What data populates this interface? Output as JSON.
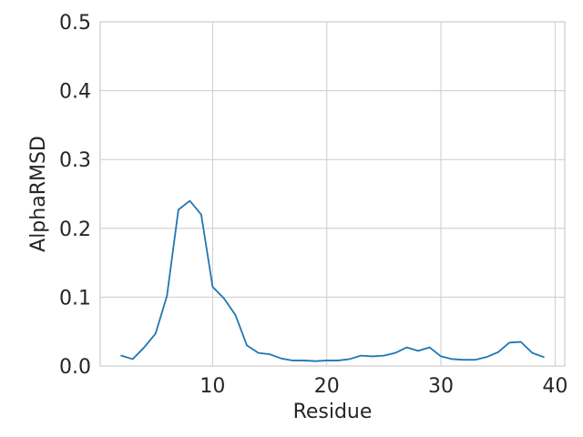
{
  "chart_data": {
    "type": "line",
    "title": "",
    "xlabel": "Residue",
    "ylabel": "AlphaRMSD",
    "xlim": [
      0.15,
      40.85
    ],
    "ylim": [
      0,
      0.5
    ],
    "xticks": [
      10,
      20,
      30,
      40
    ],
    "yticks": [
      0.0,
      0.1,
      0.2,
      0.3,
      0.4,
      0.5
    ],
    "xtick_labels": [
      "10",
      "20",
      "30",
      "40"
    ],
    "ytick_labels": [
      "0.0",
      "0.1",
      "0.2",
      "0.3",
      "0.4",
      "0.5"
    ],
    "grid": true,
    "legend": "none",
    "series": [
      {
        "color": "#1f77b4",
        "x": [
          2,
          3,
          4,
          5,
          6,
          7,
          8,
          9,
          10,
          11,
          12,
          13,
          14,
          15,
          16,
          17,
          18,
          19,
          20,
          21,
          22,
          23,
          24,
          25,
          26,
          27,
          28,
          29,
          30,
          31,
          32,
          33,
          34,
          35,
          36,
          37,
          38,
          39
        ],
        "y": [
          0.015,
          0.01,
          0.027,
          0.047,
          0.102,
          0.227,
          0.24,
          0.22,
          0.115,
          0.098,
          0.074,
          0.03,
          0.019,
          0.017,
          0.011,
          0.008,
          0.008,
          0.007,
          0.008,
          0.008,
          0.01,
          0.015,
          0.014,
          0.015,
          0.019,
          0.027,
          0.022,
          0.027,
          0.014,
          0.01,
          0.009,
          0.009,
          0.013,
          0.02,
          0.034,
          0.035,
          0.019,
          0.013
        ]
      }
    ]
  }
}
